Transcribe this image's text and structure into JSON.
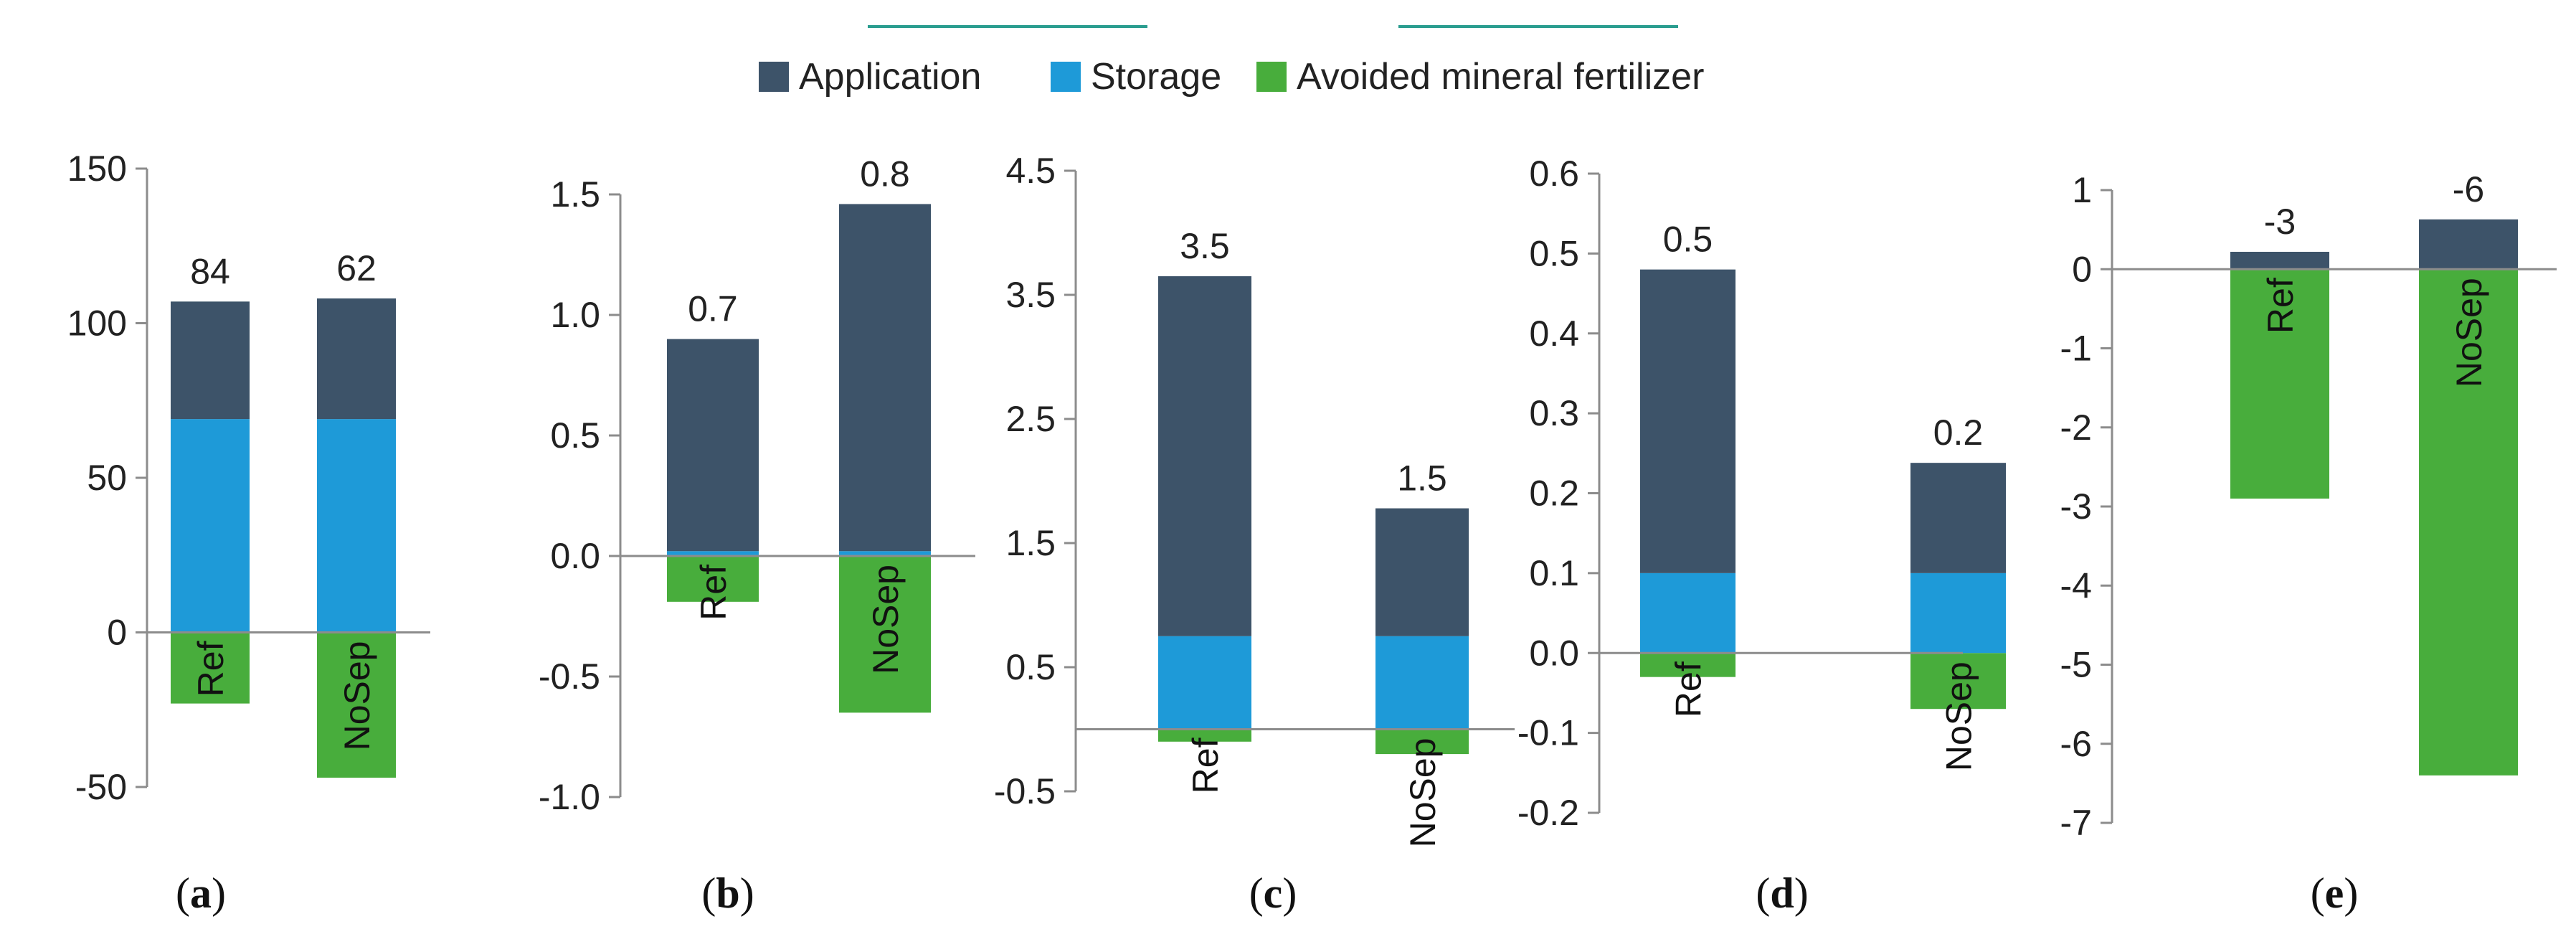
{
  "colors": {
    "Application": "#3d5369",
    "Storage": "#1e9ad8",
    "Avoided mineral fertilizer": "#48ad3c",
    "axis": "#8c8c8c",
    "top_accent": "#2a9d8f"
  },
  "legend": [
    {
      "name": "Application"
    },
    {
      "name": "Storage"
    },
    {
      "name": "Avoided mineral fertilizer"
    }
  ],
  "chart_data": [
    {
      "type": "bar",
      "stacked": true,
      "panel": "a",
      "categories": [
        "Ref",
        "NoSep"
      ],
      "series": [
        {
          "name": "Application",
          "values": [
            38,
            39
          ]
        },
        {
          "name": "Storage",
          "values": [
            69,
            69
          ]
        },
        {
          "name": "Avoided mineral fertilizer",
          "values": [
            -23,
            -47
          ]
        }
      ],
      "data_labels": [
        "84",
        "62"
      ],
      "ylim": [
        -50,
        150
      ],
      "yticks": [
        -50,
        0,
        50,
        100,
        150
      ],
      "ytick_labels": [
        "-50",
        "0",
        "50",
        "100",
        "150"
      ]
    },
    {
      "type": "bar",
      "stacked": true,
      "panel": "b",
      "categories": [
        "Ref",
        "NoSep"
      ],
      "series": [
        {
          "name": "Application",
          "values": [
            0.88,
            1.44
          ]
        },
        {
          "name": "Storage",
          "values": [
            0.02,
            0.02
          ]
        },
        {
          "name": "Avoided mineral fertilizer",
          "values": [
            -0.19,
            -0.65
          ]
        }
      ],
      "data_labels": [
        "0.7",
        "0.8"
      ],
      "ylim": [
        -1.0,
        1.5
      ],
      "yticks": [
        -1.0,
        -0.5,
        0.0,
        0.5,
        1.0,
        1.5
      ],
      "ytick_labels": [
        "-1.0",
        "-0.5",
        "0.0",
        "0.5",
        "1.0",
        "1.5"
      ]
    },
    {
      "type": "bar",
      "stacked": true,
      "panel": "c",
      "categories": [
        "Ref",
        "NoSep"
      ],
      "series": [
        {
          "name": "Application",
          "values": [
            2.9,
            1.03
          ]
        },
        {
          "name": "Storage",
          "values": [
            0.75,
            0.75
          ]
        },
        {
          "name": "Avoided mineral fertilizer",
          "values": [
            -0.1,
            -0.2
          ]
        }
      ],
      "data_labels": [
        "3.5",
        "1.5"
      ],
      "ylim": [
        -0.5,
        4.5
      ],
      "yticks": [
        -0.5,
        0.5,
        1.5,
        2.5,
        3.5,
        4.5
      ],
      "ytick_labels": [
        "-0.5",
        "0.5",
        "1.5",
        "2.5",
        "3.5",
        "4.5"
      ]
    },
    {
      "type": "bar",
      "stacked": true,
      "panel": "d",
      "categories": [
        "Ref",
        "NoSep"
      ],
      "series": [
        {
          "name": "Application",
          "values": [
            0.38,
            0.138
          ]
        },
        {
          "name": "Storage",
          "values": [
            0.1,
            0.1
          ]
        },
        {
          "name": "Avoided mineral fertilizer",
          "values": [
            -0.03,
            -0.07
          ]
        }
      ],
      "data_labels": [
        "0.5",
        "0.2"
      ],
      "ylim": [
        -0.2,
        0.6
      ],
      "yticks": [
        -0.2,
        -0.1,
        0.0,
        0.1,
        0.2,
        0.3,
        0.4,
        0.5,
        0.6
      ],
      "ytick_labels": [
        "-0.2",
        "-0.1",
        "0.0",
        "0.1",
        "0.2",
        "0.3",
        "0.4",
        "0.5",
        "0.6"
      ]
    },
    {
      "type": "bar",
      "stacked": true,
      "panel": "e",
      "categories": [
        "Ref",
        "NoSep"
      ],
      "series": [
        {
          "name": "Application",
          "values": [
            0.22,
            0.63
          ]
        },
        {
          "name": "Storage",
          "values": [
            0,
            0
          ]
        },
        {
          "name": "Avoided mineral fertilizer",
          "values": [
            -2.9,
            -6.4
          ]
        }
      ],
      "data_labels": [
        "-3",
        "-6"
      ],
      "ylim": [
        -7,
        1
      ],
      "yticks": [
        -7,
        -6,
        -5,
        -4,
        -3,
        -2,
        -1,
        0,
        1
      ],
      "ytick_labels": [
        "-7",
        "-6",
        "-5",
        "-4",
        "-3",
        "-2",
        "-1",
        "0",
        "1"
      ]
    }
  ]
}
